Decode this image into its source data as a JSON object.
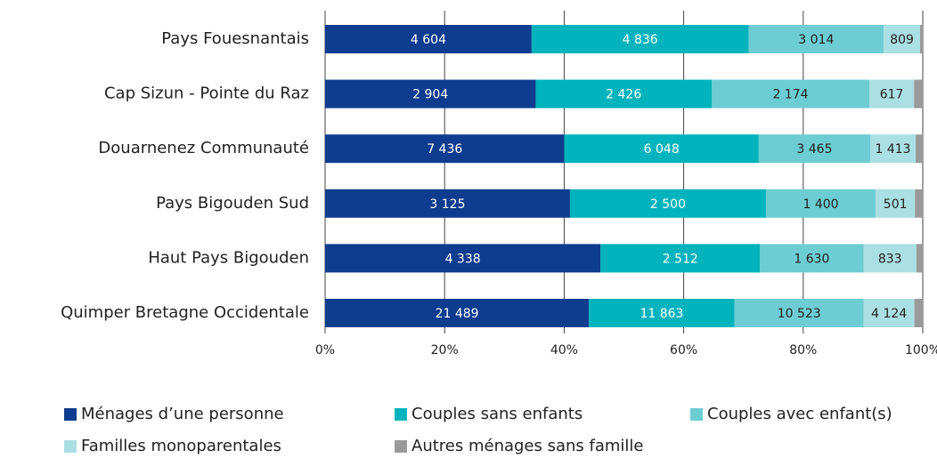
{
  "chart_data": {
    "type": "bar",
    "orientation": "horizontal",
    "stacking": "percent",
    "categories": [
      "Pays Fouesnantais",
      "Cap Sizun - Pointe du Raz",
      "Douarnenez Communauté",
      "Pays Bigouden Sud",
      "Haut Pays Bigouden",
      "Quimper Bretagne Occidentale"
    ],
    "series": [
      {
        "name": "Ménages d’une personne",
        "color": "#0e3c8e",
        "values": [
          4604,
          2904,
          7436,
          3125,
          4338,
          21489
        ],
        "value_labels": [
          "4 604",
          "2 904",
          "7 436",
          "3 125",
          "4 338",
          "21 489"
        ]
      },
      {
        "name": "Couples sans enfants",
        "color": "#00b3bc",
        "values": [
          4836,
          2426,
          6048,
          2500,
          2512,
          11863
        ],
        "value_labels": [
          "4 836",
          "2 426",
          "6 048",
          "2 500",
          "2 512",
          "11 863"
        ]
      },
      {
        "name": "Couples avec enfant(s)",
        "color": "#6dcdd3",
        "values": [
          3014,
          2174,
          3465,
          1400,
          1630,
          10523
        ],
        "value_labels": [
          "3 014",
          "2 174",
          "3 465",
          "1 400",
          "1 630",
          "10 523"
        ]
      },
      {
        "name": "Familles monoparentales",
        "color": "#aadfe3",
        "values": [
          809,
          617,
          1413,
          501,
          833,
          4124
        ],
        "value_labels": [
          "809",
          "617",
          "1 413",
          "501",
          "833",
          "4 124"
        ]
      },
      {
        "name": "Autres ménages sans famille",
        "color": "#9a9a9a",
        "values": [
          60,
          120,
          220,
          100,
          100,
          680
        ]
      }
    ],
    "xlim": [
      0,
      100
    ],
    "xticks": [
      {
        "value": 0,
        "label": "0%"
      },
      {
        "value": 20,
        "label": "20%"
      },
      {
        "value": 40,
        "label": "40%"
      },
      {
        "value": 60,
        "label": "60%"
      },
      {
        "value": 80,
        "label": "80%"
      },
      {
        "value": 100,
        "label": "100%"
      }
    ],
    "grid": true,
    "legend": "bottom"
  }
}
